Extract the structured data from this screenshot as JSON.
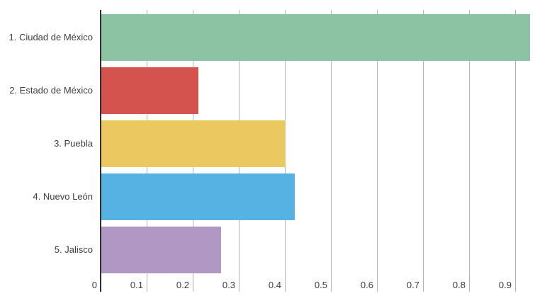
{
  "chart_data": {
    "type": "bar",
    "orientation": "horizontal",
    "title": "",
    "xlabel": "",
    "ylabel": "",
    "categories": [
      "1. Ciudad de México",
      "2. Estado de México",
      "3. Puebla",
      "4. Nuevo León",
      "5. Jalisco"
    ],
    "values": [
      0.93,
      0.21,
      0.4,
      0.42,
      0.26
    ],
    "bar_colors": [
      "#8cc3a2",
      "#d5534e",
      "#ecc861",
      "#55b2e2",
      "#b197c4"
    ],
    "x_ticks": [
      0,
      0.1,
      0.2,
      0.3,
      0.4,
      0.5,
      0.6,
      0.7,
      0.8,
      0.9
    ],
    "x_tick_labels": [
      "0",
      "0.1",
      "0.2",
      "0.3",
      "0.4",
      "0.5",
      "0.6",
      "0.7",
      "0.8",
      "0.9"
    ],
    "xlim": [
      0,
      0.97
    ],
    "grid": "vertical",
    "legend": false,
    "colors": {
      "axis": "#2f2f2f",
      "gridline": "#b0b0b0",
      "label_text": "#3d3d3d",
      "background": "#ffffff"
    }
  }
}
